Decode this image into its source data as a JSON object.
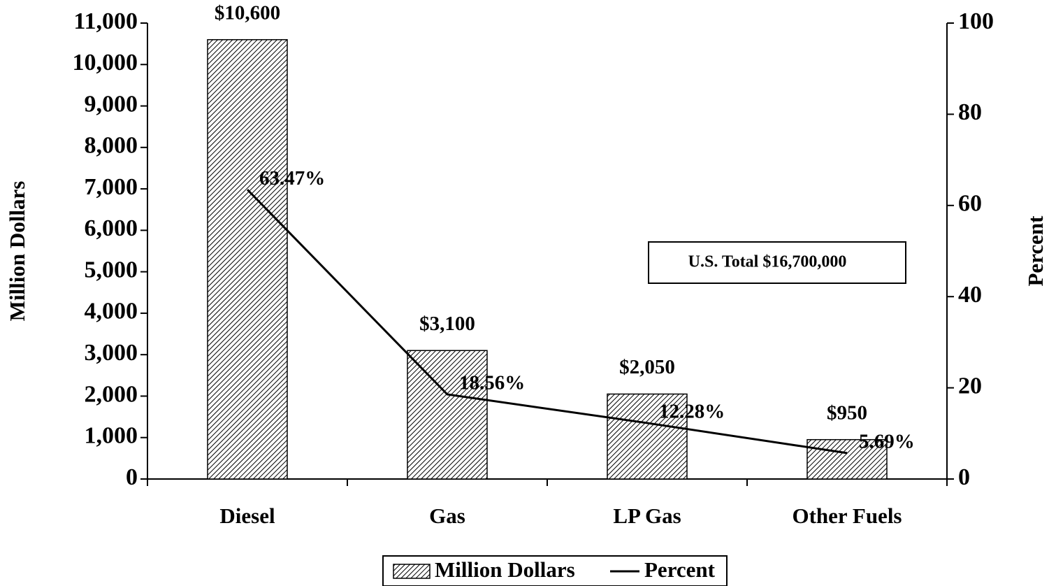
{
  "chart_data": {
    "type": "bar",
    "categories": [
      "Diesel",
      "Gas",
      "LP Gas",
      "Other Fuels"
    ],
    "series": [
      {
        "name": "Million Dollars",
        "type": "bar",
        "color": "#000000",
        "values": [
          10600,
          3100,
          2050,
          950
        ],
        "value_labels": [
          "$10,600",
          "$3,100",
          "$2,050",
          "$950"
        ]
      },
      {
        "name": "Percent",
        "type": "line",
        "axis": "y2",
        "color": "#000000",
        "values": [
          63.47,
          18.56,
          12.28,
          5.69
        ],
        "value_labels": [
          "63.47%",
          "18.56%",
          "12.28%",
          "5.69%"
        ]
      }
    ],
    "ylabel": "Million Dollars",
    "y2label": "Percent",
    "ylim": [
      0,
      11000
    ],
    "yticks": [
      0,
      {
        "value": 1000,
        "label": "1,000"
      },
      {
        "value": 2000,
        "label": "2,000"
      },
      {
        "value": 3000,
        "label": "3,000"
      },
      {
        "value": 4000,
        "label": "4,000"
      },
      {
        "value": 5000,
        "label": "5,000"
      },
      {
        "value": 6000,
        "label": "6,000"
      },
      {
        "value": 7000,
        "label": "7,000"
      },
      {
        "value": 8000,
        "label": "8,000"
      },
      {
        "value": 9000,
        "label": "9,000"
      },
      {
        "value": 10000,
        "label": "10,000"
      },
      {
        "value": 11000,
        "label": "11,000"
      }
    ],
    "y2lim": [
      0,
      100
    ],
    "y2ticks": [
      0,
      20,
      40,
      60,
      80,
      100
    ],
    "annotation": "U.S. Total $16,700,000",
    "legend": "bottom"
  }
}
